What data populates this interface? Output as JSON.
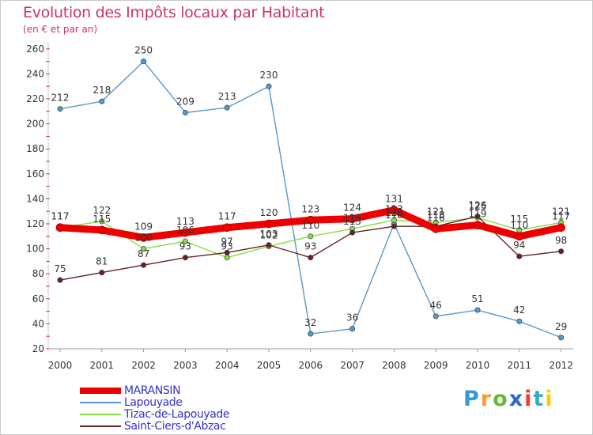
{
  "chart_data": {
    "type": "line",
    "title": "Evolution des Impôts locaux par Habitant",
    "subtitle": "(en € et par an)",
    "xlabel": "",
    "ylabel": "",
    "categories": [
      "2000",
      "2001",
      "2002",
      "2003",
      "2004",
      "2005",
      "2006",
      "2007",
      "2008",
      "2009",
      "2010",
      "2011",
      "2012"
    ],
    "ylim": [
      20,
      260
    ],
    "yticks": [
      20,
      40,
      60,
      80,
      100,
      120,
      140,
      160,
      180,
      200,
      220,
      240,
      260
    ],
    "grid": false,
    "legend_position": "bottom-left",
    "series": [
      {
        "name": "MARANSIN",
        "color": "#ee0000",
        "values": [
          117,
          115,
          109,
          113,
          117,
          120,
          123,
          124,
          131,
          116,
          119,
          110,
          117
        ]
      },
      {
        "name": "Lapouyade",
        "color": "#5599cc",
        "values": [
          212,
          218,
          250,
          209,
          213,
          230,
          32,
          36,
          120,
          46,
          51,
          42,
          29
        ]
      },
      {
        "name": "Tizac-de-Lapouyade",
        "color": "#88dd44",
        "values": [
          117,
          122,
          100,
          106,
          93,
          102,
          110,
          116,
          123,
          121,
          125,
          115,
          121
        ]
      },
      {
        "name": "Saint-Ciers-d'Abzac",
        "color": "#662222",
        "values": [
          75,
          81,
          87,
          93,
          97,
          103,
          93,
          113,
          118,
          118,
          126,
          94,
          98
        ]
      }
    ]
  },
  "brand": {
    "letters": [
      "P",
      "r",
      "o",
      "x",
      "i",
      "t",
      "i"
    ],
    "colors": [
      "#3399dd",
      "#ff9933",
      "#66bb33",
      "#3366cc",
      "#ff3333",
      "#33aacc",
      "#ffcc00"
    ]
  }
}
